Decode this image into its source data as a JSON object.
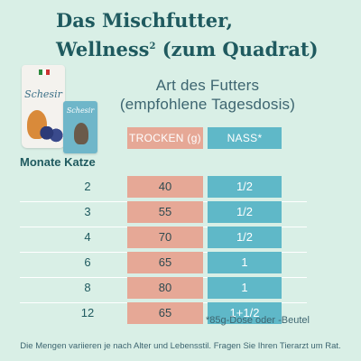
{
  "title": {
    "line1": "Das Mischfutter,",
    "line2_main": "Wellness",
    "line2_sup": "2",
    "line2_rest": " (zum Quadrat)"
  },
  "product": {
    "bag_brand": "Schesir",
    "pouch_brand": "Schesir"
  },
  "food_header": {
    "line1": "Art des Futters",
    "line2": "(empfohlene Tagesdosis)"
  },
  "columns": {
    "trocken": "TROCKEN (g)",
    "nass": "NASS*"
  },
  "months_label": "Monate Katze",
  "rows": [
    {
      "month": "2",
      "trocken": "40",
      "nass": "1/2"
    },
    {
      "month": "3",
      "trocken": "55",
      "nass": "1/2"
    },
    {
      "month": "4",
      "trocken": "70",
      "nass": "1/2"
    },
    {
      "month": "6",
      "trocken": "65",
      "nass": "1"
    },
    {
      "month": "8",
      "trocken": "80",
      "nass": "1"
    },
    {
      "month": "12",
      "trocken": "65",
      "nass": "1+1/2"
    }
  ],
  "footnote": "*85g-Dose oder -Beutel",
  "disclaimer": "Die Mengen variieren je nach Alter und Lebensstil. Fragen Sie Ihren Tierarzt um Rat.",
  "colors": {
    "background": "#d9efe6",
    "trocken": "#e6a896",
    "nass": "#5fb8c8",
    "heading": "#1f5a5f"
  }
}
